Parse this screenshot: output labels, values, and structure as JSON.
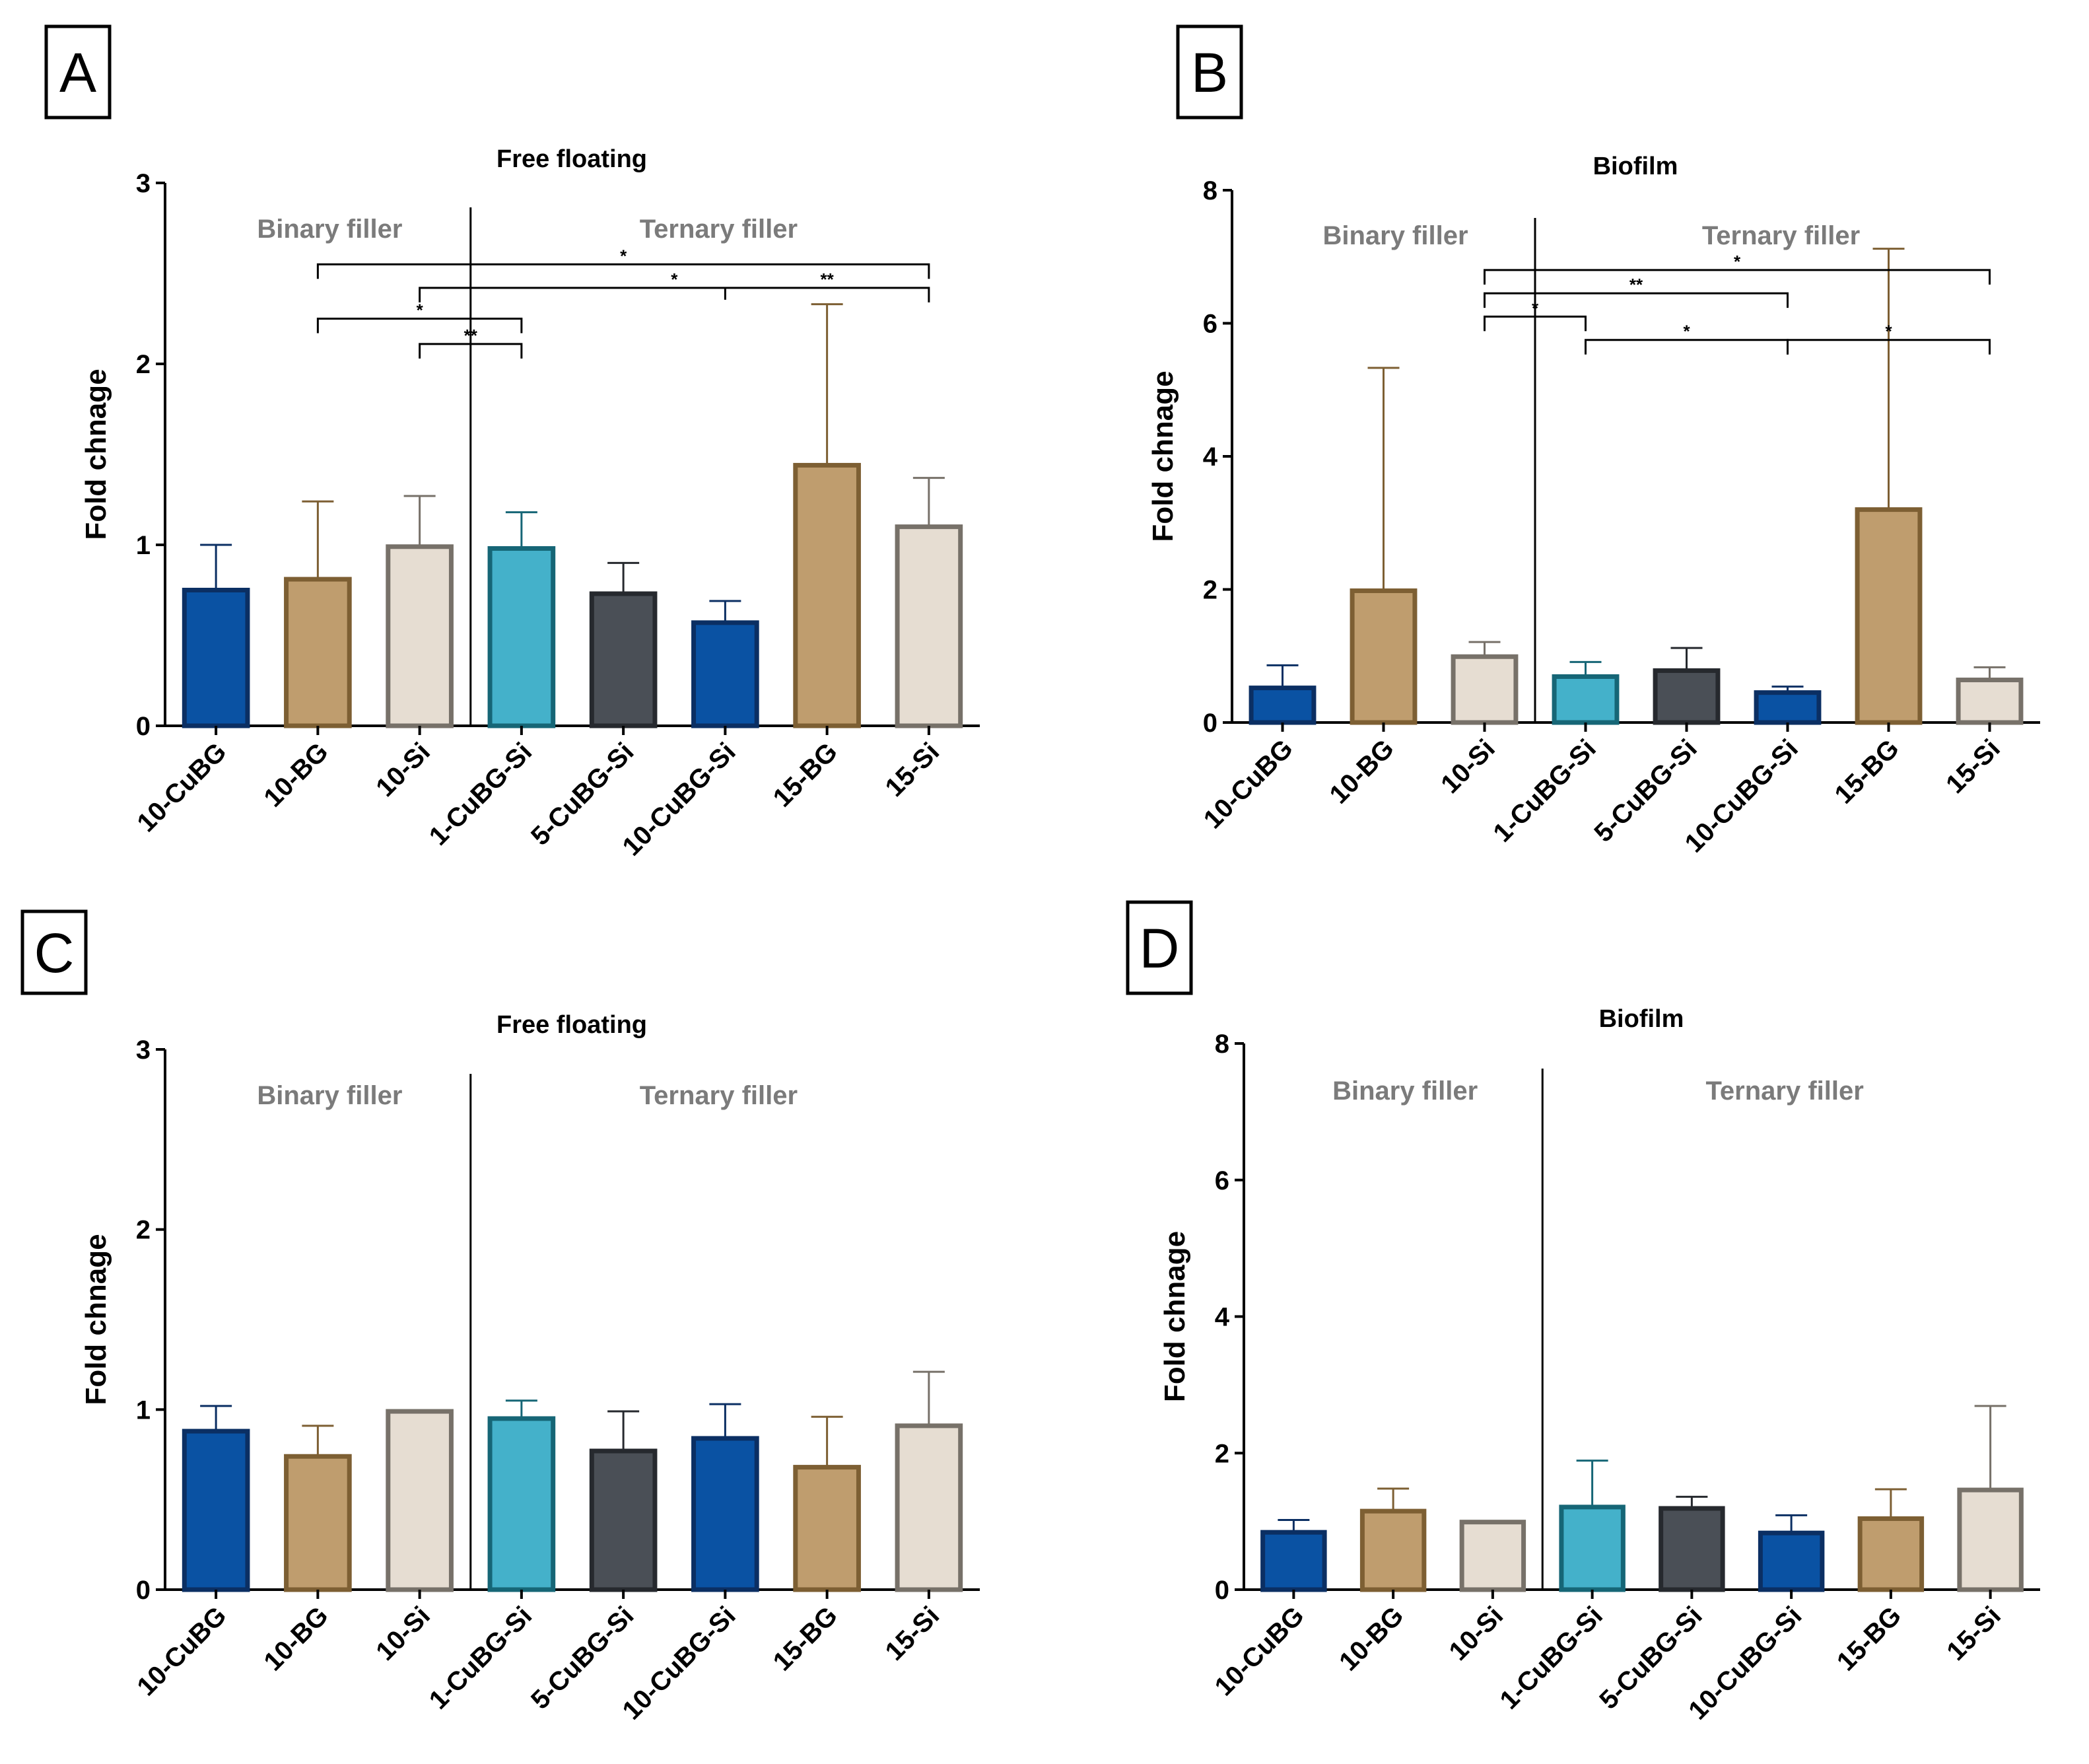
{
  "figure": {
    "panel_letters": [
      "A",
      "B",
      "C",
      "D"
    ],
    "category_colors": {
      "10-CuBG": {
        "fill": "#0a52a3",
        "stroke": "#0b2f63"
      },
      "10-BG": {
        "fill": "#bf9d6e",
        "stroke": "#7d5f33"
      },
      "10-Si": {
        "fill": "#e6ddd2",
        "stroke": "#777169"
      },
      "1-CuBG-Si": {
        "fill": "#44b1ca",
        "stroke": "#166676"
      },
      "5-CuBG-Si": {
        "fill": "#4a4f56",
        "stroke": "#26292e"
      },
      "10-CuBG-Si": {
        "fill": "#0a52a3",
        "stroke": "#0b2f63"
      },
      "15-BG": {
        "fill": "#bf9d6e",
        "stroke": "#7d5f33"
      },
      "15-Si": {
        "fill": "#e6ddd2",
        "stroke": "#777169"
      }
    }
  },
  "chart_data": [
    {
      "panel": "A",
      "type": "bar",
      "title": "Free floating",
      "ylabel": "Fold chnage",
      "xlabel": "",
      "ylim": [
        0,
        3
      ],
      "yticks": [
        0,
        1,
        2,
        3
      ],
      "categories": [
        "10-CuBG",
        "10-BG",
        "10-Si",
        "1-CuBG-Si",
        "5-CuBG-Si",
        "10-CuBG-Si",
        "15-BG",
        "15-Si"
      ],
      "values": [
        0.75,
        0.81,
        0.99,
        0.98,
        0.73,
        0.57,
        1.44,
        1.1
      ],
      "errors": [
        0.25,
        0.43,
        0.28,
        0.2,
        0.17,
        0.12,
        0.89,
        0.27
      ],
      "group_labels": [
        "Binary filler",
        "Ternary filler"
      ],
      "group_split_after_index": 2,
      "significance": [
        {
          "from": 1,
          "to": 7,
          "label": "*",
          "y": 2.55
        },
        {
          "from": 2,
          "to": 7,
          "label": "*",
          "y": 2.42,
          "mid_tick": 5
        },
        {
          "from": 5,
          "to": 7,
          "label": "**",
          "y": 2.42,
          "label_only": true
        },
        {
          "from": 1,
          "to": 3,
          "label": "*",
          "y": 2.25
        },
        {
          "from": 2,
          "to": 3,
          "label": "**",
          "y": 2.11
        }
      ]
    },
    {
      "panel": "B",
      "type": "bar",
      "title": "Biofilm",
      "ylabel": "Fold chnage",
      "xlabel": "",
      "ylim": [
        0,
        8
      ],
      "yticks": [
        0,
        2,
        4,
        6,
        8
      ],
      "categories": [
        "10-CuBG",
        "10-BG",
        "10-Si",
        "1-CuBG-Si",
        "5-CuBG-Si",
        "10-CuBG-Si",
        "15-BG",
        "15-Si"
      ],
      "values": [
        0.52,
        1.98,
        0.99,
        0.69,
        0.78,
        0.45,
        3.2,
        0.64
      ],
      "errors": [
        0.34,
        3.35,
        0.22,
        0.22,
        0.34,
        0.09,
        3.92,
        0.19
      ],
      "group_labels": [
        "Binary filler",
        "Ternary filler"
      ],
      "group_split_after_index": 2,
      "significance": [
        {
          "from": 2,
          "to": 7,
          "label": "*",
          "y": 6.8
        },
        {
          "from": 2,
          "to": 5,
          "label": "**",
          "y": 6.45
        },
        {
          "from": 2,
          "to": 3,
          "label": "*",
          "y": 6.1
        },
        {
          "from": 3,
          "to": 5,
          "label": "*",
          "y": 5.75
        },
        {
          "from": 5,
          "to": 7,
          "label": "*",
          "y": 5.75
        }
      ]
    },
    {
      "panel": "C",
      "type": "bar",
      "title": "Free floating",
      "ylabel": "Fold chnage",
      "xlabel": "",
      "ylim": [
        0,
        3
      ],
      "yticks": [
        0,
        1,
        2,
        3
      ],
      "categories": [
        "10-CuBG",
        "10-BG",
        "10-Si",
        "1-CuBG-Si",
        "5-CuBG-Si",
        "10-CuBG-Si",
        "15-BG",
        "15-Si"
      ],
      "values": [
        0.88,
        0.74,
        0.99,
        0.95,
        0.77,
        0.84,
        0.68,
        0.91
      ],
      "errors": [
        0.14,
        0.17,
        0.0,
        0.1,
        0.22,
        0.19,
        0.28,
        0.3
      ],
      "group_labels": [
        "Binary filler",
        "Ternary filler"
      ],
      "group_split_after_index": 2,
      "significance": []
    },
    {
      "panel": "D",
      "type": "bar",
      "title": "Biofilm",
      "ylabel": "Fold chnage",
      "xlabel": "",
      "ylim": [
        0,
        8
      ],
      "yticks": [
        0,
        2,
        4,
        6,
        8
      ],
      "categories": [
        "10-CuBG",
        "10-BG",
        "10-Si",
        "1-CuBG-Si",
        "5-CuBG-Si",
        "10-CuBG-Si",
        "15-BG",
        "15-Si"
      ],
      "values": [
        0.84,
        1.15,
        0.99,
        1.21,
        1.19,
        0.83,
        1.04,
        1.46
      ],
      "errors": [
        0.18,
        0.33,
        0.0,
        0.68,
        0.17,
        0.26,
        0.43,
        1.23
      ],
      "group_labels": [
        "Binary filler",
        "Ternary filler"
      ],
      "group_split_after_index": 2,
      "significance": []
    }
  ]
}
